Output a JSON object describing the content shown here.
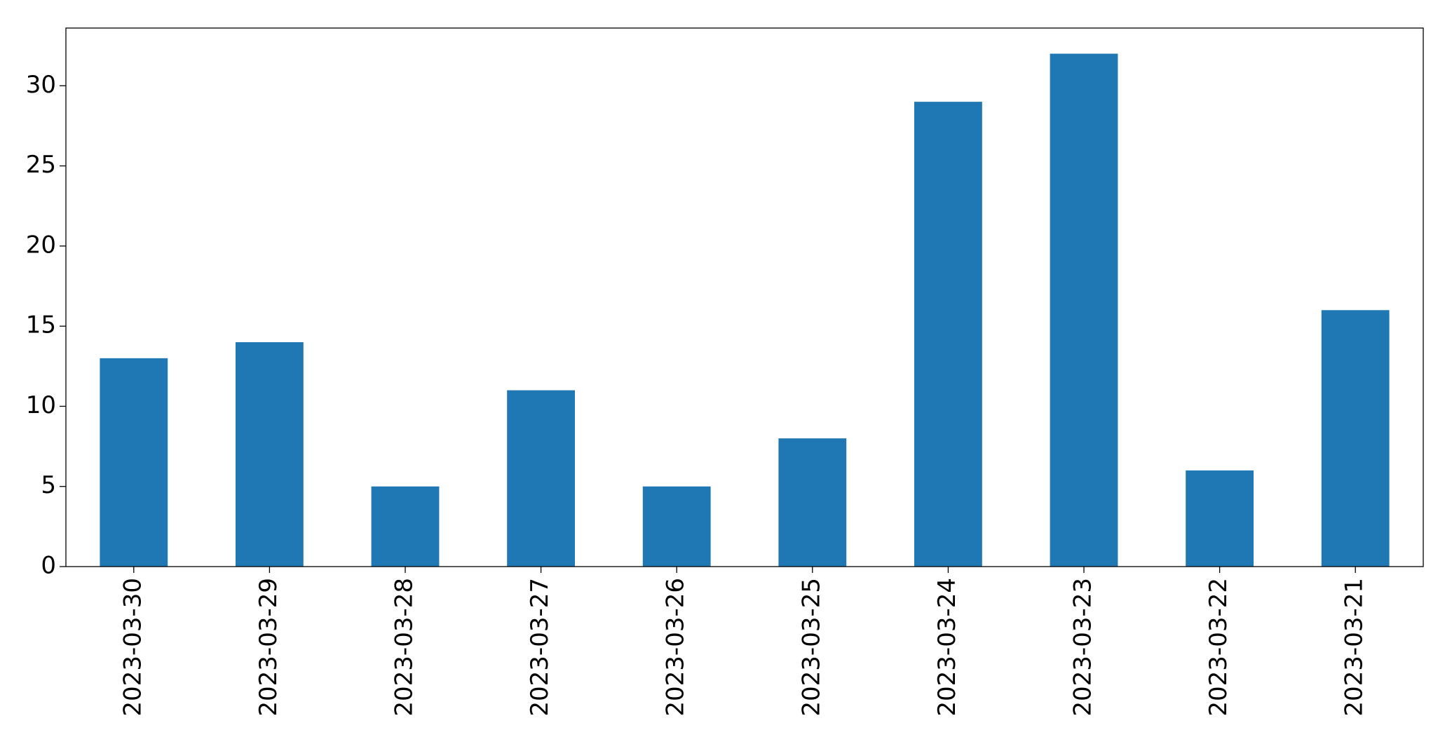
{
  "chart_data": {
    "type": "bar",
    "categories": [
      "2023-03-30",
      "2023-03-29",
      "2023-03-28",
      "2023-03-27",
      "2023-03-26",
      "2023-03-25",
      "2023-03-24",
      "2023-03-23",
      "2023-03-22",
      "2023-03-21"
    ],
    "values": [
      13,
      14,
      5,
      11,
      5,
      8,
      29,
      32,
      6,
      16
    ],
    "color": "#1f77b4",
    "ylim": [
      0,
      33.6
    ],
    "yticks": [
      0,
      5,
      10,
      15,
      20,
      25,
      30
    ],
    "grid": false
  }
}
